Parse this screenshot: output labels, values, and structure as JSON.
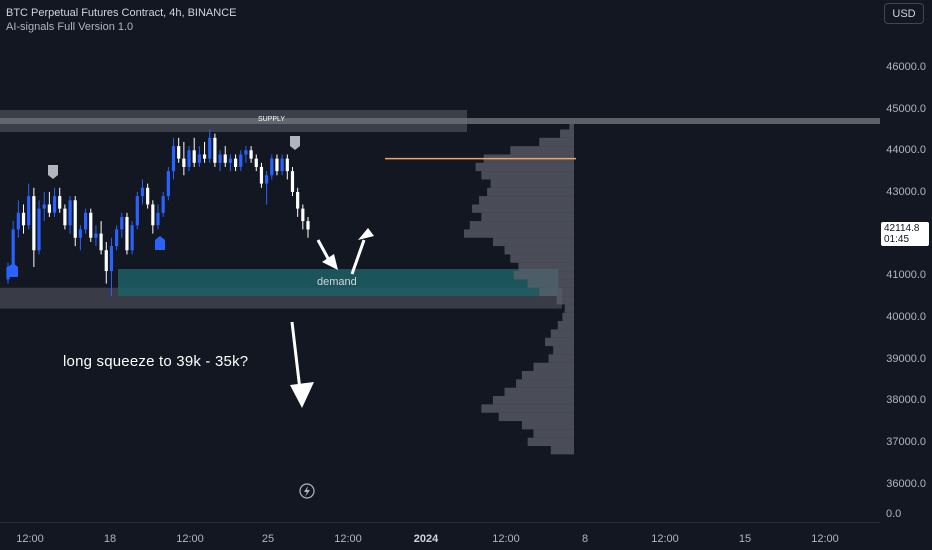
{
  "header": {
    "title": "BTC Perpetual Futures Contract, 4h, BINANCE",
    "indicator": "AI-signals Full Version 1.0",
    "currency": "USD"
  },
  "price_axis": {
    "ticks": [
      "46000.0",
      "45000.0",
      "44000.0",
      "43000.0",
      "42000.0",
      "41000.0",
      "40000.0",
      "39000.0",
      "38000.0",
      "37000.0",
      "36000.0"
    ],
    "tick_values": [
      46000,
      45000,
      44000,
      43000,
      42000,
      41000,
      40000,
      39000,
      38000,
      37000,
      36000
    ],
    "current_price": "42114.8",
    "countdown": "01:45",
    "zero_label": "0.0"
  },
  "time_axis": {
    "ticks": [
      {
        "label": "12:00",
        "bold": false
      },
      {
        "label": "18",
        "bold": false
      },
      {
        "label": "12:00",
        "bold": false
      },
      {
        "label": "25",
        "bold": false
      },
      {
        "label": "12:00",
        "bold": false
      },
      {
        "label": "2024",
        "bold": true
      },
      {
        "label": "12:00",
        "bold": false
      },
      {
        "label": "8",
        "bold": false
      },
      {
        "label": "12:00",
        "bold": false
      },
      {
        "label": "15",
        "bold": false
      },
      {
        "label": "12:00",
        "bold": false
      }
    ]
  },
  "zones": {
    "supply_label": "SUPPLY",
    "demand_label": "demand",
    "supply": {
      "low": 44600,
      "high": 45000
    },
    "demand": {
      "low": 40500,
      "high": 41150
    },
    "lower_box": {
      "low": 40200,
      "high": 40700
    }
  },
  "annotation": "long squeeze to 39k - 35k?",
  "colors": {
    "background": "#131722",
    "up_candle": "#2962ff",
    "down_candle": "#ffffff",
    "demand_zone": "#1e5f66",
    "supply_zone": "#3a3d45",
    "volume_profile": "#5d606b",
    "poc_line": "#f7a35c",
    "signal_up": "#2962ff",
    "signal_down": "#b2b5be"
  },
  "chart_data": {
    "type": "candlestick",
    "title": "BTC Perpetual Futures Contract, 4h, BINANCE",
    "xlabel": "",
    "ylabel": "",
    "ylim": [
      36000,
      46500
    ],
    "candles": [
      {
        "o": 40900,
        "h": 41300,
        "l": 40800,
        "c": 41200
      },
      {
        "o": 41200,
        "h": 42300,
        "l": 41100,
        "c": 42100
      },
      {
        "o": 42100,
        "h": 42800,
        "l": 41900,
        "c": 42500
      },
      {
        "o": 42500,
        "h": 42700,
        "l": 42000,
        "c": 42200
      },
      {
        "o": 42200,
        "h": 43200,
        "l": 42100,
        "c": 42900
      },
      {
        "o": 42900,
        "h": 43100,
        "l": 41200,
        "c": 41600
      },
      {
        "o": 41600,
        "h": 42800,
        "l": 41500,
        "c": 42600
      },
      {
        "o": 42600,
        "h": 43000,
        "l": 42300,
        "c": 42700
      },
      {
        "o": 42700,
        "h": 43000,
        "l": 42400,
        "c": 42500
      },
      {
        "o": 42500,
        "h": 43100,
        "l": 42400,
        "c": 42900
      },
      {
        "o": 42900,
        "h": 43100,
        "l": 42500,
        "c": 42600
      },
      {
        "o": 42600,
        "h": 42700,
        "l": 42100,
        "c": 42200
      },
      {
        "o": 42200,
        "h": 42900,
        "l": 42000,
        "c": 42800
      },
      {
        "o": 42800,
        "h": 42900,
        "l": 41700,
        "c": 41900
      },
      {
        "o": 41900,
        "h": 42200,
        "l": 41600,
        "c": 42100
      },
      {
        "o": 42100,
        "h": 42600,
        "l": 42000,
        "c": 42500
      },
      {
        "o": 42500,
        "h": 42600,
        "l": 41800,
        "c": 41900
      },
      {
        "o": 41900,
        "h": 42200,
        "l": 41700,
        "c": 42000
      },
      {
        "o": 42000,
        "h": 42300,
        "l": 41500,
        "c": 41600
      },
      {
        "o": 41600,
        "h": 41800,
        "l": 40800,
        "c": 41100
      },
      {
        "o": 41100,
        "h": 41900,
        "l": 40500,
        "c": 41700
      },
      {
        "o": 41700,
        "h": 42200,
        "l": 41600,
        "c": 42100
      },
      {
        "o": 42100,
        "h": 42500,
        "l": 41900,
        "c": 42400
      },
      {
        "o": 42400,
        "h": 42500,
        "l": 41500,
        "c": 41600
      },
      {
        "o": 41600,
        "h": 42300,
        "l": 41500,
        "c": 42200
      },
      {
        "o": 42200,
        "h": 43000,
        "l": 42100,
        "c": 42900
      },
      {
        "o": 42900,
        "h": 43300,
        "l": 42700,
        "c": 43100
      },
      {
        "o": 43100,
        "h": 43200,
        "l": 42600,
        "c": 42700
      },
      {
        "o": 42700,
        "h": 42800,
        "l": 42000,
        "c": 42200
      },
      {
        "o": 42200,
        "h": 42700,
        "l": 42100,
        "c": 42500
      },
      {
        "o": 42500,
        "h": 43000,
        "l": 42400,
        "c": 42900
      },
      {
        "o": 42900,
        "h": 43600,
        "l": 42800,
        "c": 43500
      },
      {
        "o": 43500,
        "h": 44300,
        "l": 43300,
        "c": 44100
      },
      {
        "o": 44100,
        "h": 44300,
        "l": 43700,
        "c": 43800
      },
      {
        "o": 43800,
        "h": 44200,
        "l": 43400,
        "c": 43600
      },
      {
        "o": 43600,
        "h": 44100,
        "l": 43500,
        "c": 44000
      },
      {
        "o": 44000,
        "h": 44300,
        "l": 43600,
        "c": 43700
      },
      {
        "o": 43700,
        "h": 44100,
        "l": 43600,
        "c": 43900
      },
      {
        "o": 43900,
        "h": 44200,
        "l": 43700,
        "c": 43800
      },
      {
        "o": 43800,
        "h": 44500,
        "l": 43700,
        "c": 44300
      },
      {
        "o": 44300,
        "h": 44400,
        "l": 43600,
        "c": 43700
      },
      {
        "o": 43700,
        "h": 44000,
        "l": 43500,
        "c": 43900
      },
      {
        "o": 43900,
        "h": 44100,
        "l": 43600,
        "c": 43700
      },
      {
        "o": 43700,
        "h": 43900,
        "l": 43500,
        "c": 43800
      },
      {
        "o": 43800,
        "h": 43900,
        "l": 43500,
        "c": 43600
      },
      {
        "o": 43600,
        "h": 44000,
        "l": 43500,
        "c": 43900
      },
      {
        "o": 43900,
        "h": 44100,
        "l": 43700,
        "c": 44000
      },
      {
        "o": 44000,
        "h": 44100,
        "l": 43700,
        "c": 43800
      },
      {
        "o": 43800,
        "h": 43900,
        "l": 43500,
        "c": 43600
      },
      {
        "o": 43600,
        "h": 43700,
        "l": 43100,
        "c": 43200
      },
      {
        "o": 43200,
        "h": 43500,
        "l": 42700,
        "c": 43400
      },
      {
        "o": 43400,
        "h": 43900,
        "l": 43300,
        "c": 43800
      },
      {
        "o": 43800,
        "h": 43900,
        "l": 43400,
        "c": 43500
      },
      {
        "o": 43500,
        "h": 43900,
        "l": 43400,
        "c": 43800
      },
      {
        "o": 43800,
        "h": 43900,
        "l": 43300,
        "c": 43500
      },
      {
        "o": 43500,
        "h": 43600,
        "l": 42900,
        "c": 43000
      },
      {
        "o": 43000,
        "h": 43100,
        "l": 42400,
        "c": 42600
      },
      {
        "o": 42600,
        "h": 42700,
        "l": 42100,
        "c": 42300
      },
      {
        "o": 42300,
        "h": 42400,
        "l": 41900,
        "c": 42100
      }
    ],
    "volume_profile": {
      "price_levels": [
        44600,
        44400,
        44200,
        44000,
        43800,
        43600,
        43400,
        43200,
        43000,
        42800,
        42600,
        42400,
        42200,
        42000,
        41800,
        41600,
        41400,
        41200,
        41000,
        40800,
        40600,
        40400,
        40200,
        40000,
        39800,
        39600,
        39400,
        39200,
        39000,
        38800,
        38600,
        38400,
        38200,
        38000,
        37800,
        37600,
        37400,
        37200,
        37000,
        36800
      ],
      "volumes": [
        4,
        12,
        30,
        55,
        78,
        85,
        80,
        72,
        75,
        82,
        88,
        80,
        90,
        95,
        70,
        60,
        55,
        48,
        52,
        40,
        30,
        15,
        8,
        10,
        14,
        20,
        25,
        18,
        22,
        35,
        45,
        50,
        60,
        70,
        80,
        65,
        45,
        35,
        40,
        20
      ]
    },
    "poc_price": 43800,
    "annotations": [
      "SUPPLY",
      "demand",
      "long squeeze to 39k - 35k?"
    ]
  }
}
